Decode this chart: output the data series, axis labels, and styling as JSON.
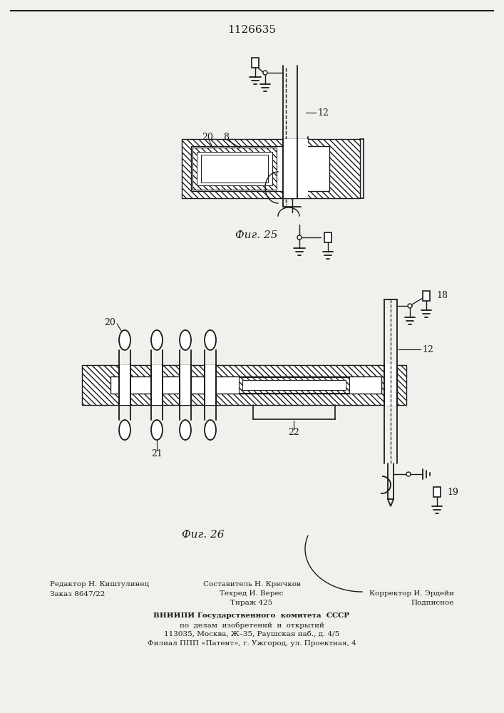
{
  "patent_number": "1126635",
  "fig25_label": "Фиг. 25",
  "fig26_label": "Фиг. 26",
  "background_color": "#f0f0ec",
  "line_color": "#1a1a1a",
  "footer_left_line1": "Редактор Н. Киштулинец",
  "footer_left_line2": "Заказ 8647/22",
  "footer_center_line0": "Составитель Н. Крючков",
  "footer_center_line1": "Техред И. Верес",
  "footer_center_line2": "Тираж 425",
  "footer_right_line1": "Корректор И. Эрдейи",
  "footer_right_line2": "Подписное",
  "footer_vniipи": "ВНИИПИ Государственного  комитета  СССР",
  "footer_po": "по  делам  изобретений  и  открытий",
  "footer_address": "113035, Москва, Ж–35, Раушская наб., д. 4/5",
  "footer_filial": "Филиал ППП «Патент», г. Ужгород, ул. Проектная, 4"
}
